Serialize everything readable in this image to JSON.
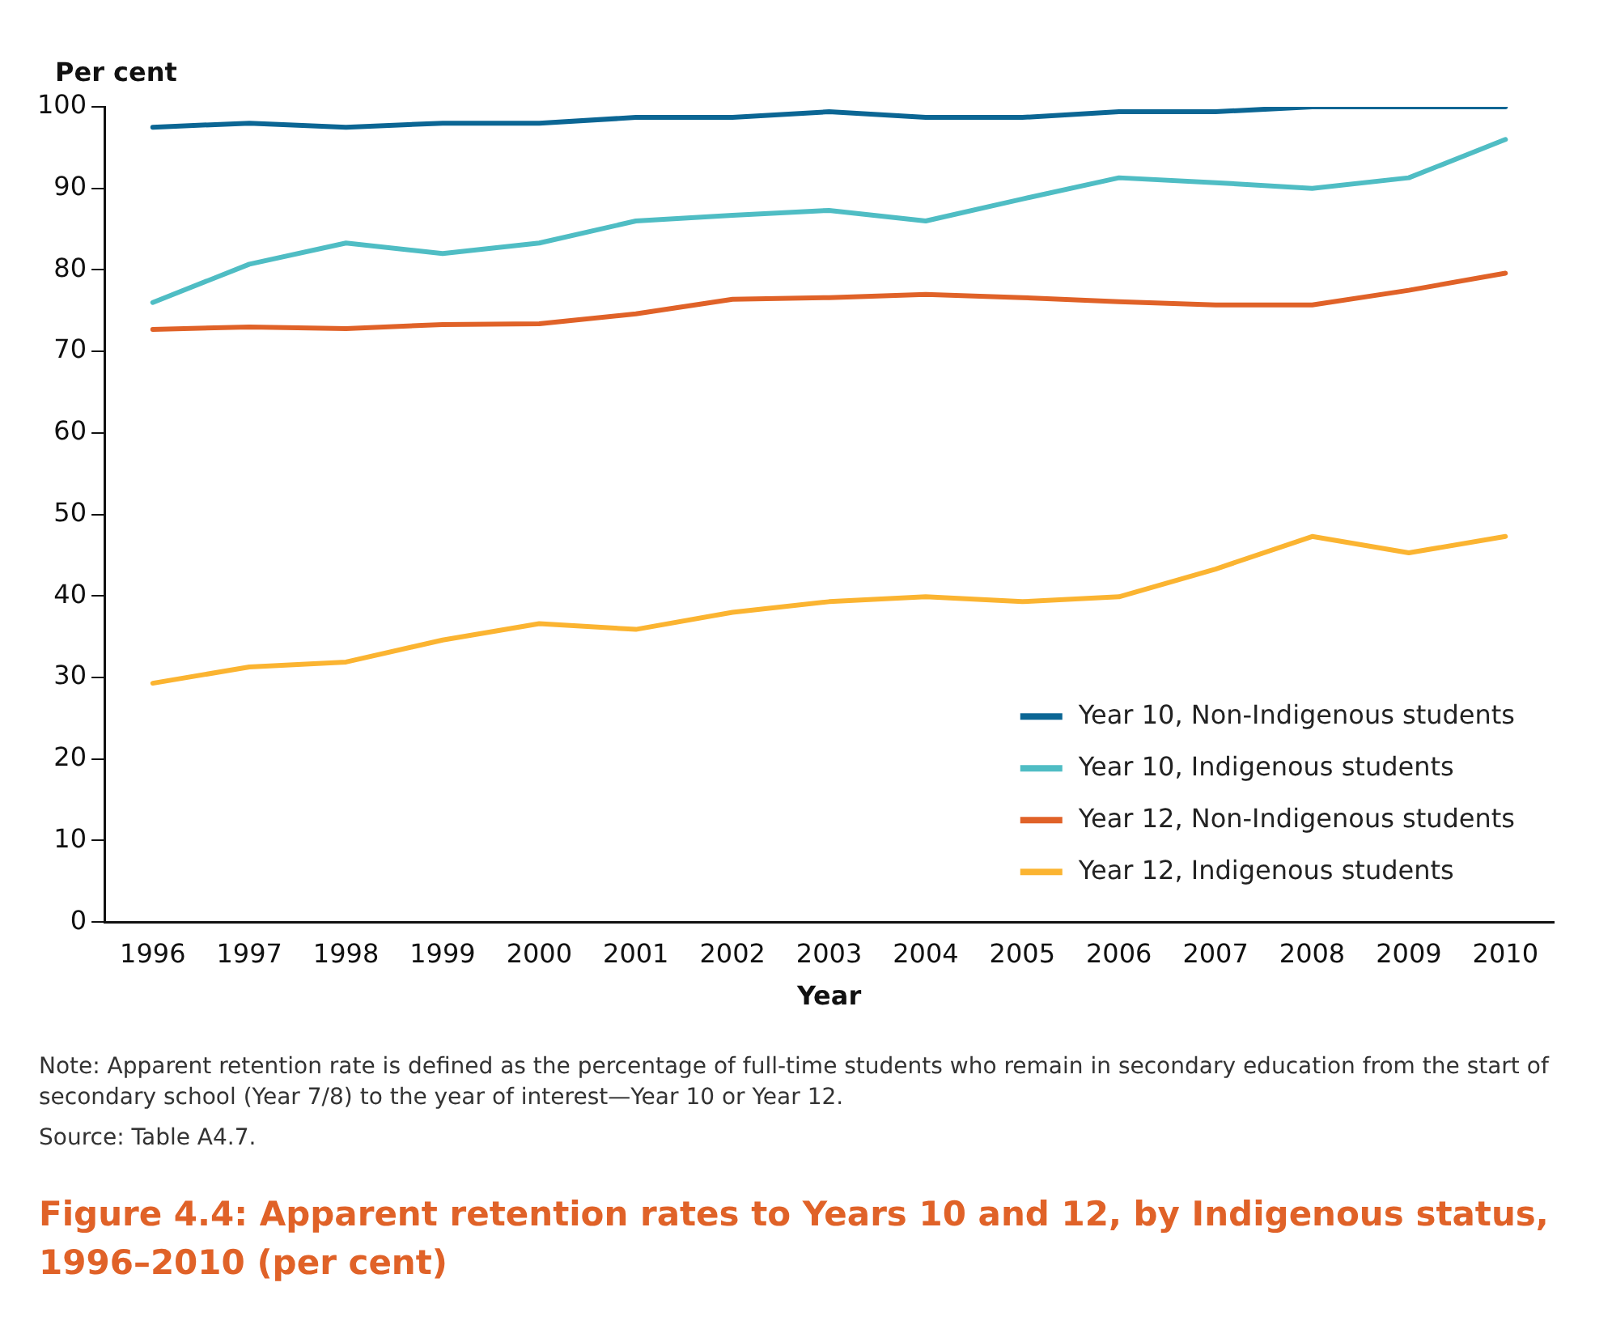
{
  "chart_data": {
    "type": "line",
    "title": "Figure 4.4: Apparent retention rates to Years 10 and 12, by Indigenous status, 1996–2010 (per cent)",
    "xlabel": "Year",
    "ylabel": "Per cent",
    "categories": [
      "1996",
      "1997",
      "1998",
      "1999",
      "2000",
      "2001",
      "2002",
      "2003",
      "2004",
      "2005",
      "2006",
      "2007",
      "2008",
      "2009",
      "2010"
    ],
    "series": [
      {
        "name": "Year 10, Non-Indigenous students",
        "color": "#0b6694",
        "values": [
          97.5,
          98,
          97.5,
          98,
          98,
          98.7,
          98.7,
          99.4,
          98.7,
          98.7,
          99.4,
          99.4,
          100,
          100,
          100
        ]
      },
      {
        "name": "Year 10, Indigenous students",
        "color": "#4fbdc4",
        "values": [
          76,
          80.7,
          83.3,
          82,
          83.3,
          86,
          86.7,
          87.3,
          86,
          88.7,
          91.3,
          90.7,
          90,
          91.3,
          96
        ]
      },
      {
        "name": "Year 12, Non-Indigenous students",
        "color": "#e06228",
        "values": [
          72.7,
          73,
          72.8,
          73.3,
          73.4,
          74.6,
          76.4,
          76.6,
          77,
          76.6,
          76.1,
          75.7,
          75.7,
          77.5,
          79.6
        ]
      },
      {
        "name": "Year 12, Indigenous students",
        "color": "#fbb431",
        "values": [
          29.3,
          31.3,
          31.9,
          34.6,
          36.6,
          35.9,
          38,
          39.3,
          39.9,
          39.3,
          39.9,
          43.3,
          47.3,
          45.3,
          47.3
        ]
      }
    ],
    "ylim": [
      0,
      100
    ],
    "yticks": [
      0,
      10,
      20,
      30,
      40,
      50,
      60,
      70,
      80,
      90,
      100
    ],
    "grid": false,
    "legend": "bottom right",
    "marker": "none",
    "line_style": "solid",
    "annotations": [
      "Note: Apparent retention rate is defined as the percentage of full-time students who remain in secondary education from the start of secondary school (Year 7/8) to the year of interest—Year 10 or Year 12.",
      "Source: Table A4.7."
    ]
  }
}
